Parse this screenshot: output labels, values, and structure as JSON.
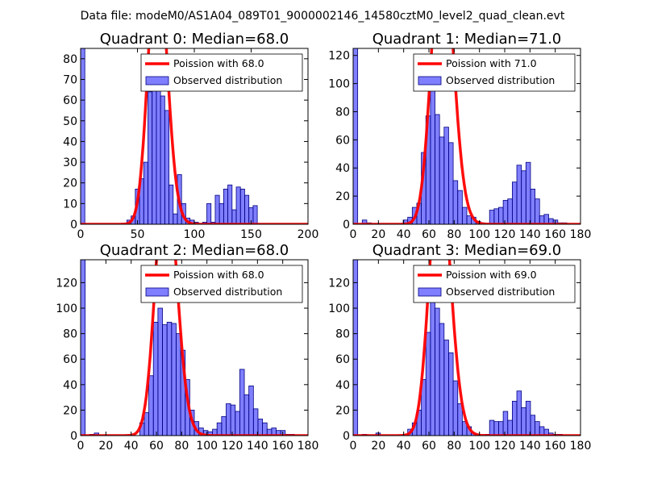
{
  "figure": {
    "suptitle": "Data file: modeM0/AS1A04_089T01_9000002146_14580cztM0_level2_quad_clean.evt"
  },
  "colors": {
    "poisson": "#ff0000",
    "bars": "#0000ff",
    "bar_edge": "#000080"
  },
  "chart_data": [
    {
      "type": "bar",
      "title": "Quadrant 0: Median=68.0",
      "xlim": [
        0,
        200
      ],
      "ylim": [
        0,
        85
      ],
      "xticks": [
        0,
        50,
        100,
        150,
        200
      ],
      "yticks": [
        0,
        10,
        20,
        30,
        40,
        50,
        60,
        70,
        80
      ],
      "legend": {
        "line": "Poission with 68.0",
        "bars": "Observed distribution"
      },
      "bin_width": 3.7,
      "bins": [
        0,
        3.7,
        7.4,
        11.1,
        14.8,
        18.5,
        22.2,
        25.9,
        29.6,
        33.3,
        37,
        40.7,
        44.4,
        48.1,
        51.8,
        55.5,
        59.2,
        62.9,
        66.6,
        70.3,
        74,
        77.7,
        81.4,
        85.1,
        88.8,
        92.5,
        96.2,
        99.9,
        103.6,
        107.3,
        111,
        114.7,
        118.4,
        122.1,
        125.8,
        129.5,
        133.2,
        136.9,
        140.6,
        144.3,
        148,
        151.7
      ],
      "counts": [
        85,
        0,
        0,
        0,
        0,
        0,
        0,
        0,
        0,
        0,
        0,
        2,
        4,
        17,
        22,
        30,
        64,
        66,
        71,
        62,
        55,
        19,
        5,
        24,
        10,
        3,
        2,
        1,
        0,
        1,
        10,
        1,
        14,
        10,
        17,
        19,
        7,
        18,
        17,
        14,
        8,
        9
      ],
      "poisson_mean": 68.0,
      "poisson_scale": 2723
    },
    {
      "type": "bar",
      "title": "Quadrant 1: Median=71.0",
      "xlim": [
        0,
        180
      ],
      "ylim": [
        0,
        125
      ],
      "xticks": [
        0,
        20,
        40,
        60,
        80,
        100,
        120,
        140,
        160,
        180
      ],
      "yticks": [
        0,
        20,
        40,
        60,
        80,
        100,
        120
      ],
      "legend": {
        "line": "Poission with 71.0",
        "bars": "Observed distribution"
      },
      "bin_width": 3.6,
      "bins": [
        0,
        3.6,
        7.2,
        10.8,
        14.4,
        18,
        21.6,
        25.2,
        28.8,
        32.4,
        36,
        39.6,
        43.2,
        46.8,
        50.4,
        54,
        57.6,
        61.2,
        64.8,
        68.4,
        72,
        75.6,
        79.2,
        82.8,
        86.4,
        90,
        93.6,
        97.2,
        100.8,
        104.4,
        108,
        111.6,
        115.2,
        118.8,
        122.4,
        126,
        129.6,
        133.2,
        136.8,
        140.4,
        144,
        147.6,
        151.2,
        154.8,
        158.4,
        162,
        165.6
      ],
      "counts": [
        125,
        0,
        3,
        1,
        0,
        0,
        0,
        0,
        0,
        0,
        0,
        3,
        5,
        12,
        15,
        51,
        77,
        96,
        78,
        62,
        69,
        58,
        31,
        24,
        12,
        6,
        5,
        2,
        1,
        0,
        10,
        11,
        12,
        17,
        18,
        30,
        42,
        38,
        44,
        25,
        18,
        6,
        7,
        4,
        3,
        1,
        1
      ],
      "poisson_mean": 71.0,
      "poisson_scale": 4355
    },
    {
      "type": "bar",
      "title": "Quadrant 2: Median=68.0",
      "xlim": [
        0,
        180
      ],
      "ylim": [
        0,
        138
      ],
      "xticks": [
        0,
        20,
        40,
        60,
        80,
        100,
        120,
        140,
        160,
        180
      ],
      "yticks": [
        0,
        20,
        40,
        60,
        80,
        100,
        120
      ],
      "legend": {
        "line": "Poission with 68.0",
        "bars": "Observed distribution"
      },
      "bin_width": 3.6,
      "bins": [
        0,
        3.6,
        7.2,
        10.8,
        14.4,
        18,
        21.6,
        25.2,
        28.8,
        32.4,
        36,
        39.6,
        43.2,
        46.8,
        50.4,
        54,
        57.6,
        61.2,
        64.8,
        68.4,
        72,
        75.6,
        79.2,
        82.8,
        86.4,
        90,
        93.6,
        97.2,
        100.8,
        104.4,
        108,
        111.6,
        115.2,
        118.8,
        122.4,
        126,
        129.6,
        133.2,
        136.8,
        140.4,
        144,
        147.6,
        151.2,
        154.8,
        158.4,
        162,
        165.6
      ],
      "counts": [
        138,
        0,
        1,
        2,
        0,
        0,
        0,
        0,
        0,
        0,
        0,
        0,
        0,
        10,
        18,
        47,
        89,
        100,
        87,
        89,
        88,
        80,
        67,
        44,
        20,
        11,
        6,
        4,
        3,
        5,
        10,
        15,
        25,
        24,
        19,
        52,
        32,
        39,
        21,
        13,
        10,
        5,
        6,
        4,
        4,
        1,
        1
      ],
      "poisson_mean": 68.0,
      "poisson_scale": 4350
    },
    {
      "type": "bar",
      "title": "Quadrant 3: Median=69.0",
      "xlim": [
        0,
        180
      ],
      "ylim": [
        0,
        138
      ],
      "xticks": [
        0,
        20,
        40,
        60,
        80,
        100,
        120,
        140,
        160,
        180
      ],
      "yticks": [
        0,
        20,
        40,
        60,
        80,
        100,
        120
      ],
      "legend": {
        "line": "Poission with 69.0",
        "bars": "Observed distribution"
      },
      "bin_width": 3.6,
      "bins": [
        0,
        3.6,
        7.2,
        10.8,
        14.4,
        18,
        21.6,
        25.2,
        28.8,
        32.4,
        36,
        39.6,
        43.2,
        46.8,
        50.4,
        54,
        57.6,
        61.2,
        64.8,
        68.4,
        72,
        75.6,
        79.2,
        82.8,
        86.4,
        90,
        93.6,
        97.2,
        100.8,
        104.4,
        108,
        111.6,
        115.2,
        118.8,
        122.4,
        126,
        129.6,
        133.2,
        136.8,
        140.4,
        144,
        147.6,
        151.2,
        154.8,
        158.4,
        162,
        165.6
      ],
      "counts": [
        138,
        0,
        1,
        0,
        0,
        2,
        0,
        0,
        0,
        0,
        0,
        1,
        5,
        10,
        20,
        44,
        81,
        117,
        100,
        88,
        75,
        65,
        43,
        25,
        11,
        7,
        2,
        1,
        0,
        1,
        12,
        11,
        11,
        19,
        12,
        27,
        35,
        22,
        27,
        16,
        11,
        7,
        5,
        2,
        1,
        1,
        0
      ],
      "poisson_mean": 69.0,
      "poisson_scale": 4380
    }
  ]
}
